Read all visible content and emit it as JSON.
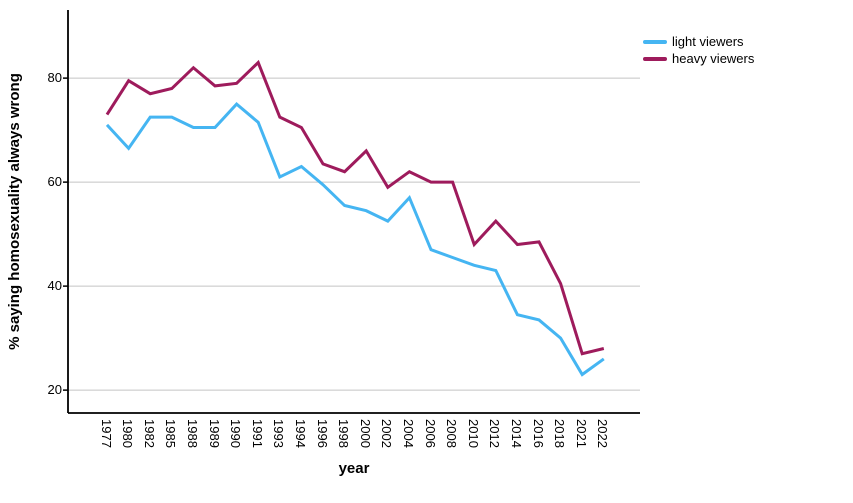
{
  "chart_data": {
    "type": "line",
    "title": "",
    "xlabel": "year",
    "ylabel": "% saying homosexuality always wrong",
    "categories": [
      "1977",
      "1980",
      "1982",
      "1985",
      "1988",
      "1989",
      "1990",
      "1991",
      "1993",
      "1994",
      "1996",
      "1998",
      "2000",
      "2002",
      "2004",
      "2006",
      "2008",
      "2010",
      "2012",
      "2014",
      "2016",
      "2018",
      "2021",
      "2022"
    ],
    "series": [
      {
        "name": "light viewers",
        "color": "#45b5f2",
        "values": [
          71,
          66.5,
          72.5,
          72.5,
          70.5,
          70.5,
          75,
          71.5,
          61,
          63,
          59.5,
          55.5,
          54.5,
          52.5,
          57,
          47,
          45.5,
          44,
          43,
          34.5,
          33.5,
          30,
          23,
          26
        ]
      },
      {
        "name": "heavy viewers",
        "color": "#9e1b5c",
        "values": [
          73,
          79.5,
          77,
          78,
          82,
          78.5,
          79,
          83,
          72.5,
          70.5,
          63.5,
          62,
          66,
          59,
          62,
          60,
          60,
          48,
          52.5,
          48,
          48.5,
          40.5,
          27,
          28
        ]
      }
    ],
    "yticks": [
      20,
      40,
      60,
      80
    ],
    "ylim": [
      15.6,
      93.1
    ],
    "grid": "horizontal",
    "legend_position": "top-right",
    "colors": {
      "gridline": "#c4c4c4",
      "axis": "#000000",
      "text": "#000000",
      "background": "#ffffff"
    }
  }
}
